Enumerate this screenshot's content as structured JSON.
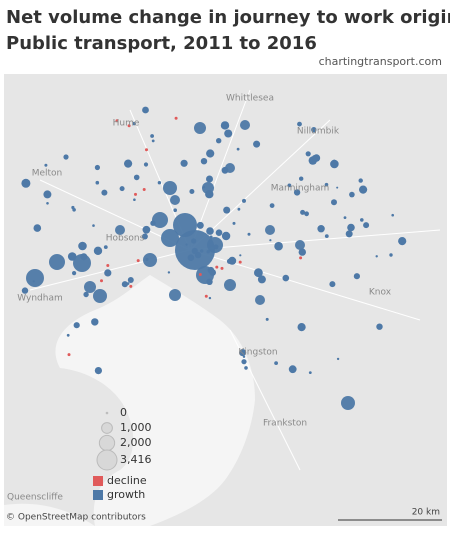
{
  "header": {
    "title_line1": "Net volume change in journey to work origins by",
    "title_line2": "Public transport, 2011 to 2016",
    "source": "chartingtransport.com"
  },
  "places": [
    "Whittlesea",
    "Hume",
    "Nillumbik",
    "Melton",
    "Manningham",
    "Hobsons",
    "Wyndham",
    "Knox",
    "Kingston",
    "Frankston",
    "Queenscliffe"
  ],
  "legend": {
    "sizes": [
      0,
      {
        "value": 1000,
        "label": "1,000"
      },
      {
        "value": 2000,
        "label": "2,000"
      },
      {
        "value": 3416,
        "label": "3,416"
      }
    ],
    "colors": [
      {
        "name": "decline",
        "color": "#e05a5a"
      },
      {
        "name": "growth",
        "color": "#4e79a7"
      }
    ]
  },
  "footer": {
    "attribution": "© OpenStreetMap contributors",
    "scale": "20 km"
  }
}
